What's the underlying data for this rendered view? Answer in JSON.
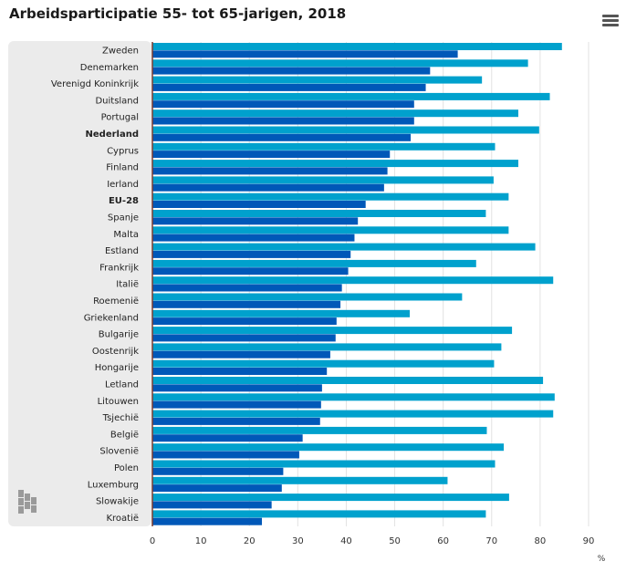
{
  "chart_data": {
    "type": "bar",
    "orientation": "horizontal",
    "title": "Arbeidsparticipatie 55- tot 65-jarigen, 2018",
    "xlabel": "%",
    "xlim": [
      0,
      90
    ],
    "xticks": [
      "0",
      "10",
      "20",
      "30",
      "40",
      "50",
      "60",
      "70",
      "80",
      "90"
    ],
    "grid": true,
    "categories": [
      "Zweden",
      "Denemarken",
      "Verenigd Koninkrijk",
      "Duitsland",
      "Portugal",
      "Nederland",
      "Cyprus",
      "Finland",
      "Ierland",
      "EU-28",
      "Spanje",
      "Malta",
      "Estland",
      "Frankrijk",
      "Italië",
      "Roemenië",
      "Griekenland",
      "Bulgarije",
      "Oostenrijk",
      "Hongarije",
      "Letland",
      "Litouwen",
      "Tsjechië",
      "België",
      "Slovenië",
      "Polen",
      "Luxemburg",
      "Slowakije",
      "Kroatië"
    ],
    "bold_categories": [
      "Nederland",
      "EU-28"
    ],
    "series": [
      {
        "color": "#00a1cd",
        "values": [
          84.5,
          77.5,
          68,
          82,
          75.5,
          79.8,
          70.7,
          75.5,
          70.4,
          73.5,
          68.8,
          73.5,
          79,
          66.8,
          82.7,
          63.9,
          53.1,
          74.2,
          72,
          70.5,
          80.6,
          83,
          82.7,
          69,
          72.5,
          70.7,
          60.9,
          73.6,
          68.8
        ]
      },
      {
        "color": "#0058b8",
        "values": [
          63,
          57.3,
          56.4,
          54,
          54,
          53.3,
          49,
          48.5,
          47.8,
          44,
          42.4,
          41.7,
          40.9,
          40.4,
          39.1,
          38.8,
          38,
          37.8,
          36.7,
          36,
          35,
          34.8,
          34.6,
          31,
          30.3,
          27,
          26.7,
          24.6,
          22.6
        ]
      }
    ]
  }
}
